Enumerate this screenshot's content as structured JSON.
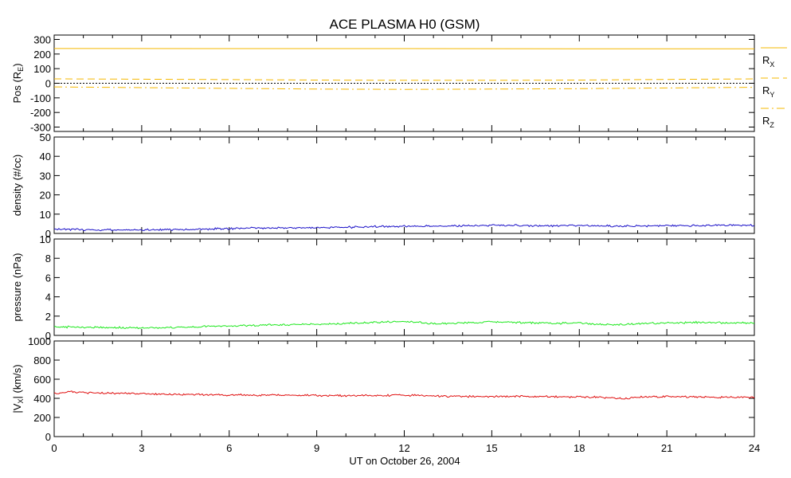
{
  "chart_data": {
    "type": "line",
    "title": "ACE PLASMA H0 (GSM)",
    "xlabel": "UT on October 26, 2004",
    "xlim": [
      0,
      24
    ],
    "x_ticks": [
      "0",
      "3",
      "6",
      "9",
      "12",
      "15",
      "18",
      "21",
      "24"
    ],
    "panels": [
      {
        "id": "pos",
        "ylabel": "Pos (R",
        "ylabel_sub": "E",
        "ylabel_suffix": ")",
        "ylim": [
          -330,
          330
        ],
        "y_ticks": [
          -300,
          -200,
          -100,
          0,
          100,
          200,
          300
        ],
        "y_tick_labels": [
          "-300",
          "-200",
          "-100",
          "0",
          "100",
          "200",
          "300"
        ],
        "zero_line": true,
        "series": [
          {
            "name": "R",
            "name_sub": "X",
            "color": "#f5b800",
            "style": "solid",
            "x": [
              0,
              6,
              12,
              18,
              24
            ],
            "values": [
              238,
              237,
              237,
              236,
              236
            ]
          },
          {
            "name": "R",
            "name_sub": "Y",
            "color": "#f5b800",
            "style": "dashed",
            "x": [
              0,
              3,
              6,
              9,
              12,
              15,
              18,
              21,
              24
            ],
            "values": [
              30,
              28,
              25,
              22,
              20,
              20,
              22,
              26,
              30
            ]
          },
          {
            "name": "R",
            "name_sub": "Z",
            "color": "#f5b800",
            "style": "dashdot",
            "x": [
              0,
              3,
              6,
              9,
              12,
              15,
              18,
              21,
              24
            ],
            "values": [
              -25,
              -30,
              -35,
              -40,
              -42,
              -40,
              -37,
              -32,
              -28
            ]
          }
        ]
      },
      {
        "id": "density",
        "ylabel": "density (#/cc)",
        "ylim": [
          0,
          50
        ],
        "y_ticks": [
          0,
          10,
          20,
          30,
          40,
          50
        ],
        "y_tick_labels": [
          "0",
          "10",
          "20",
          "30",
          "40",
          "50"
        ],
        "series": [
          {
            "name": "density",
            "color": "#1a10c8",
            "x": [
              0,
              1,
              2,
              3,
              4,
              5,
              6,
              7,
              8,
              9,
              10,
              11,
              12,
              13,
              14,
              15,
              16,
              17,
              18,
              19,
              20,
              21,
              22,
              23,
              24
            ],
            "values": [
              2.2,
              1.9,
              1.8,
              1.8,
              2.0,
              2.2,
              2.5,
              2.8,
              2.9,
              3.0,
              3.2,
              3.5,
              3.8,
              3.8,
              3.9,
              4.2,
              4.1,
              3.9,
              4.2,
              3.8,
              3.8,
              4.0,
              4.1,
              4.2,
              4.3
            ]
          }
        ]
      },
      {
        "id": "pressure",
        "ylabel": "pressure (nPa)",
        "ylim": [
          0,
          10
        ],
        "y_ticks": [
          0,
          2,
          4,
          6,
          8,
          10
        ],
        "y_tick_labels": [
          "0",
          "2",
          "4",
          "6",
          "8",
          "10"
        ],
        "series": [
          {
            "name": "pressure",
            "color": "#1ee81e",
            "x": [
              0,
              1,
              2,
              3,
              4,
              5,
              6,
              7,
              8,
              9,
              10,
              11,
              12,
              13,
              14,
              15,
              16,
              17,
              18,
              19,
              20,
              21,
              22,
              23,
              24
            ],
            "values": [
              0.9,
              0.85,
              0.8,
              0.78,
              0.82,
              0.9,
              1.0,
              1.05,
              1.1,
              1.15,
              1.25,
              1.35,
              1.45,
              1.2,
              1.3,
              1.4,
              1.35,
              1.25,
              1.3,
              1.1,
              1.2,
              1.3,
              1.35,
              1.3,
              1.3
            ]
          }
        ]
      },
      {
        "id": "vx",
        "ylabel": "|V",
        "ylabel_sub": "X",
        "ylabel_suffix": "| (km/s)",
        "ylim": [
          0,
          1000
        ],
        "y_ticks": [
          0,
          200,
          400,
          600,
          800,
          1000
        ],
        "y_tick_labels": [
          "0",
          "200",
          "400",
          "600",
          "800",
          "1000"
        ],
        "series": [
          {
            "name": "|Vx|",
            "color": "#e01010",
            "x": [
              0,
              0.5,
              1,
              2,
              3,
              4,
              5,
              6,
              7,
              8,
              9,
              10,
              11,
              12,
              13,
              14,
              15,
              16,
              17,
              18,
              19,
              19.5,
              20,
              21,
              22,
              23,
              24
            ],
            "values": [
              450,
              470,
              460,
              455,
              450,
              440,
              438,
              435,
              432,
              435,
              430,
              428,
              430,
              432,
              425,
              420,
              420,
              422,
              418,
              415,
              410,
              395,
              415,
              420,
              415,
              412,
              410
            ]
          }
        ]
      }
    ]
  }
}
